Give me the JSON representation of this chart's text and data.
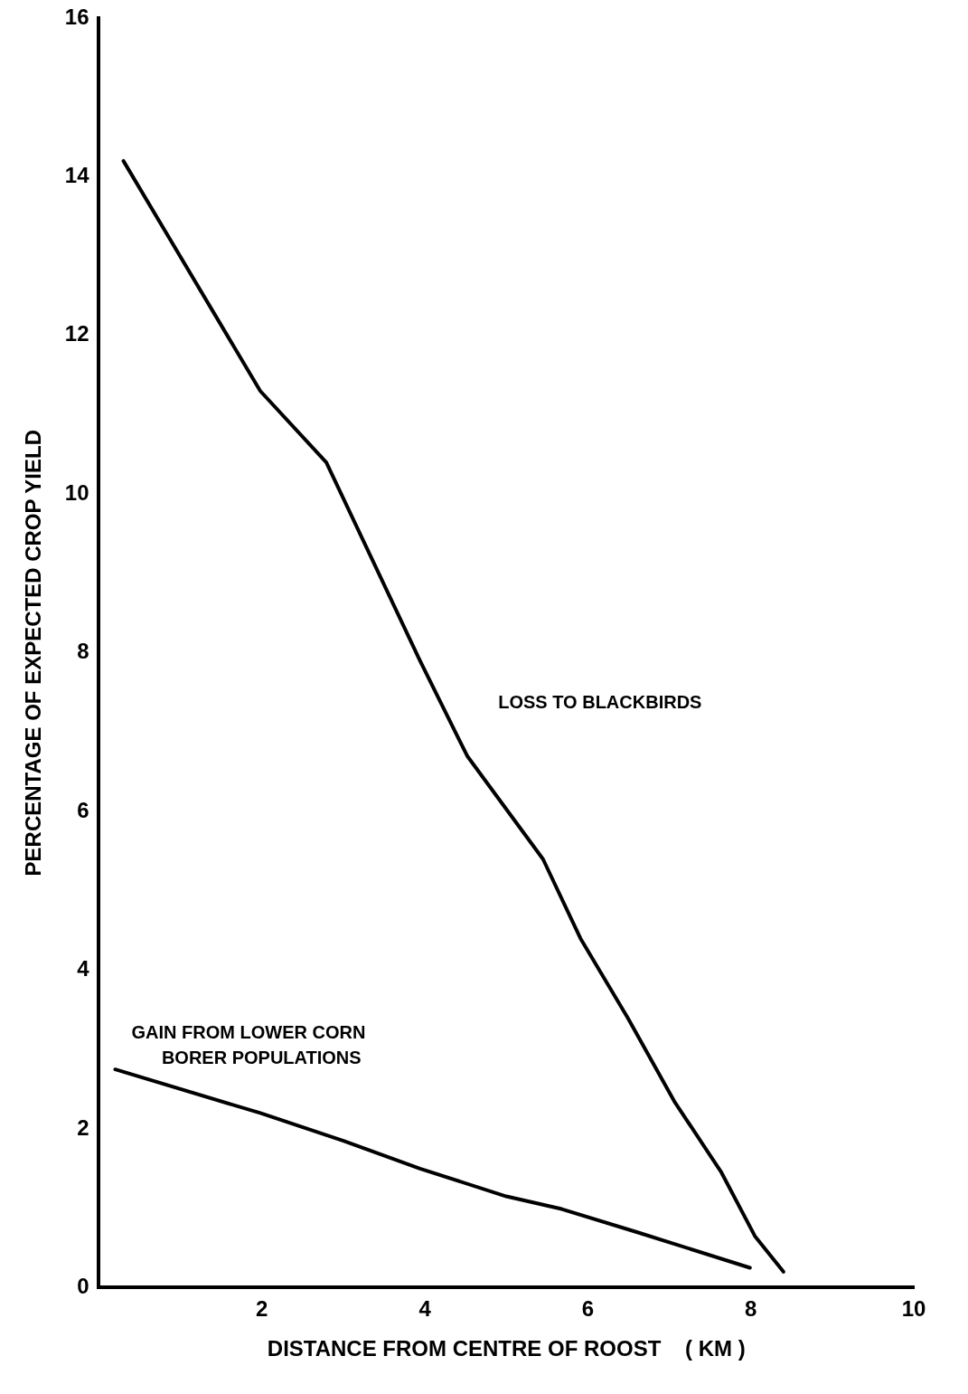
{
  "chart_data": {
    "type": "line",
    "xlabel": "DISTANCE FROM CENTRE OF ROOST    ( KM )",
    "ylabel": "PERCENTAGE OF EXPECTED CROP YIELD",
    "xlim": [
      0,
      10
    ],
    "xticks": [
      2,
      4,
      6,
      8,
      10
    ],
    "ylim": [
      0,
      16
    ],
    "yticks": [
      0,
      2,
      4,
      6,
      8,
      10,
      12,
      14,
      16
    ],
    "grid": false,
    "legend": false,
    "marker": "none",
    "line_style": "solid",
    "series": [
      {
        "color": "#000000",
        "x": [
          0.3,
          1.98,
          2.79,
          3.94,
          4.52,
          5.45,
          5.91,
          6.49,
          7.06,
          7.64,
          8.05,
          8.4
        ],
        "values": [
          14.2,
          11.3,
          10.4,
          7.9,
          6.7,
          5.4,
          4.4,
          3.4,
          2.35,
          1.45,
          0.65,
          0.2
        ]
      },
      {
        "color": "#000000",
        "x": [
          0.2,
          1.98,
          3.0,
          3.94,
          5.0,
          5.68,
          6.6,
          7.99
        ],
        "values": [
          2.75,
          2.2,
          1.85,
          1.5,
          1.15,
          0.99,
          0.7,
          0.25
        ]
      }
    ],
    "annotations": [
      "LOSS TO BLACKBIRDS",
      "GAIN FROM LOWER CORN\n      BORER POPULATIONS"
    ]
  }
}
